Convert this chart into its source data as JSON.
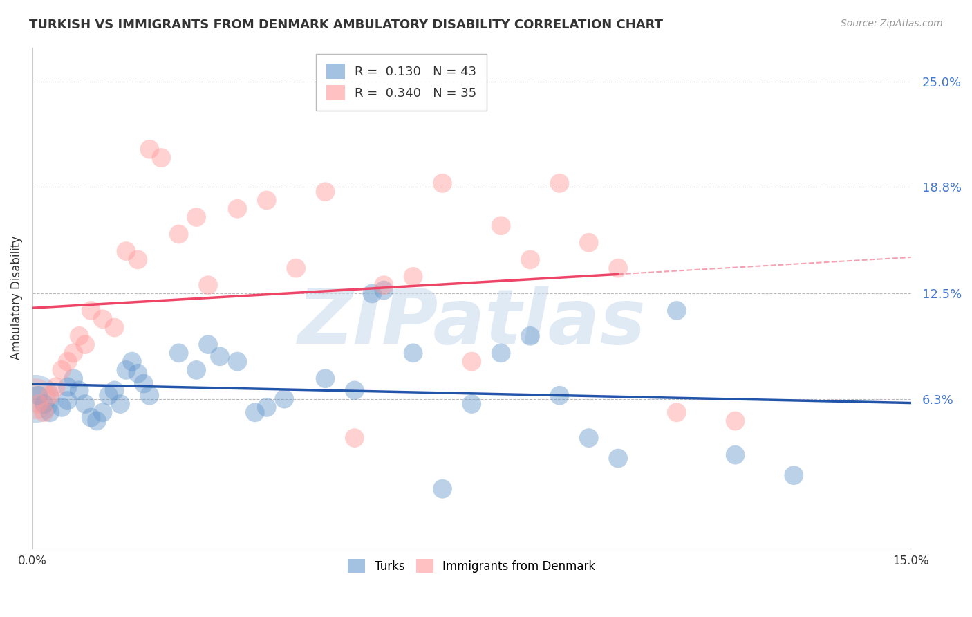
{
  "title": "TURKISH VS IMMIGRANTS FROM DENMARK AMBULATORY DISABILITY CORRELATION CHART",
  "source": "Source: ZipAtlas.com",
  "xlabel": "",
  "ylabel": "Ambulatory Disability",
  "xlim": [
    0.0,
    0.15
  ],
  "ylim": [
    -0.025,
    0.27
  ],
  "turks_R": 0.13,
  "turks_N": 43,
  "denmark_R": 0.34,
  "denmark_N": 35,
  "turks_color": "#6699CC",
  "denmark_color": "#FF9999",
  "turks_line_color": "#2255AA",
  "denmark_line_color": "#EE4466",
  "grid_yticks": [
    0.063,
    0.125,
    0.188,
    0.25
  ],
  "grid_ytick_labels": [
    "6.3%",
    "12.5%",
    "18.8%",
    "25.0%"
  ],
  "turks_x": [
    0.001,
    0.002,
    0.003,
    0.005,
    0.006,
    0.006,
    0.007,
    0.008,
    0.009,
    0.01,
    0.011,
    0.012,
    0.013,
    0.014,
    0.015,
    0.016,
    0.017,
    0.018,
    0.019,
    0.02,
    0.025,
    0.028,
    0.03,
    0.032,
    0.035,
    0.038,
    0.04,
    0.043,
    0.05,
    0.055,
    0.058,
    0.06,
    0.065,
    0.07,
    0.075,
    0.08,
    0.085,
    0.09,
    0.095,
    0.1,
    0.11,
    0.12,
    0.13
  ],
  "turks_y": [
    0.065,
    0.06,
    0.055,
    0.058,
    0.062,
    0.07,
    0.075,
    0.068,
    0.06,
    0.052,
    0.05,
    0.055,
    0.065,
    0.068,
    0.06,
    0.08,
    0.085,
    0.078,
    0.072,
    0.065,
    0.09,
    0.08,
    0.095,
    0.088,
    0.085,
    0.055,
    0.058,
    0.063,
    0.075,
    0.068,
    0.125,
    0.127,
    0.09,
    0.01,
    0.06,
    0.09,
    0.1,
    0.065,
    0.04,
    0.028,
    0.115,
    0.03,
    0.018
  ],
  "denmark_x": [
    0.001,
    0.002,
    0.003,
    0.004,
    0.005,
    0.006,
    0.007,
    0.008,
    0.009,
    0.01,
    0.012,
    0.014,
    0.016,
    0.018,
    0.02,
    0.022,
    0.025,
    0.028,
    0.03,
    0.035,
    0.04,
    0.045,
    0.05,
    0.055,
    0.06,
    0.065,
    0.07,
    0.075,
    0.08,
    0.085,
    0.09,
    0.095,
    0.1,
    0.11,
    0.12
  ],
  "denmark_y": [
    0.06,
    0.055,
    0.065,
    0.07,
    0.08,
    0.085,
    0.09,
    0.1,
    0.095,
    0.115,
    0.11,
    0.105,
    0.15,
    0.145,
    0.21,
    0.205,
    0.16,
    0.17,
    0.13,
    0.175,
    0.18,
    0.14,
    0.185,
    0.04,
    0.13,
    0.135,
    0.19,
    0.085,
    0.165,
    0.145,
    0.19,
    0.155,
    0.14,
    0.055,
    0.05
  ],
  "watermark": "ZIPatlas",
  "watermark_color": "#CCDDEE",
  "background_color": "#FFFFFF",
  "grid_color": "#BBBBBB"
}
